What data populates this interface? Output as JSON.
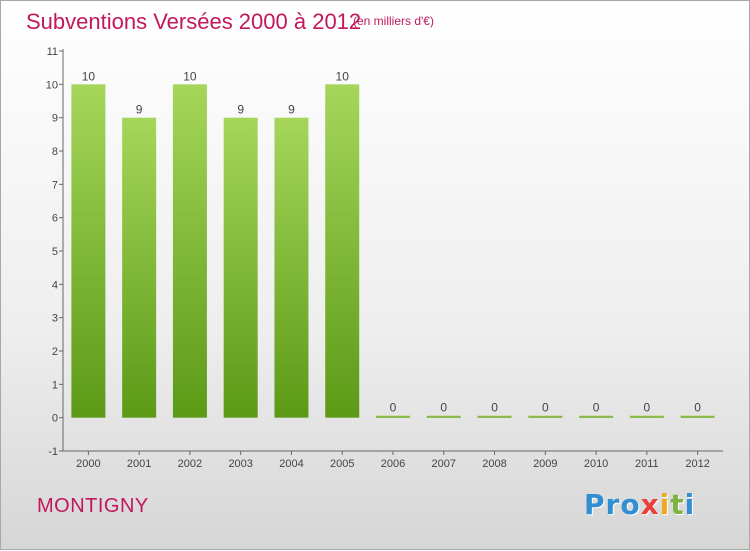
{
  "header": {
    "title": "Subventions Versées 2000 à 2012",
    "unit": "(en milliers d'€)"
  },
  "footer": {
    "commune": "MONTIGNY",
    "logo": [
      "Pro",
      "x",
      "i",
      "t",
      "i"
    ]
  },
  "colors": {
    "title": "#c2185b",
    "bar_top": "#a5d65a",
    "bar_bottom": "#5c9a16",
    "axis": "#666666"
  },
  "chart_data": {
    "type": "bar",
    "categories": [
      "2000",
      "2001",
      "2002",
      "2003",
      "2004",
      "2005",
      "2006",
      "2007",
      "2008",
      "2009",
      "2010",
      "2011",
      "2012"
    ],
    "values": [
      10,
      9,
      10,
      9,
      9,
      10,
      0,
      0,
      0,
      0,
      0,
      0,
      0
    ],
    "data_labels": [
      "10",
      "9",
      "10",
      "9",
      "9",
      "10",
      "0",
      "0",
      "0",
      "0",
      "0",
      "0",
      "0"
    ],
    "yticks": [
      -1,
      0,
      1,
      2,
      3,
      4,
      5,
      6,
      7,
      8,
      9,
      10,
      11
    ],
    "ylim": [
      -1,
      11
    ],
    "title": "Subventions Versées 2000 à 2012",
    "xlabel": "",
    "ylabel": "",
    "grid": false,
    "legend": "none"
  }
}
